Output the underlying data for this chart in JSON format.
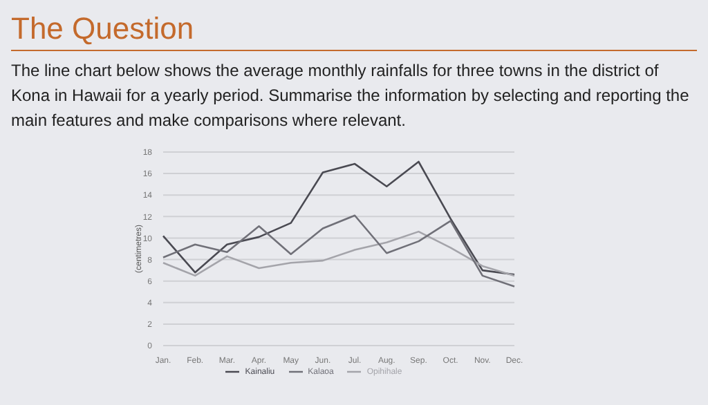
{
  "chart_data": {
    "type": "line",
    "title": "The Question",
    "subtitle": "The line chart below shows the average monthly rainfalls for three towns in the district of Kona in Hawaii for a yearly period. Summarise the information by selecting and reporting the main features and make comparisons where relevant.",
    "ylabel": "(centimetres)",
    "categories": [
      "Jan.",
      "Feb.",
      "Mar.",
      "Apr.",
      "May",
      "Jun.",
      "Jul.",
      "Aug.",
      "Sep.",
      "Oct.",
      "Nov.",
      "Dec."
    ],
    "series": [
      {
        "name": "Kainaliu",
        "color": "#4a4a52",
        "values": [
          10.2,
          6.8,
          9.4,
          10.1,
          11.4,
          16.1,
          16.9,
          14.8,
          17.1,
          11.8,
          7.0,
          6.6
        ]
      },
      {
        "name": "Opihihale",
        "color": "#a4a4aa",
        "values": [
          7.7,
          6.5,
          8.3,
          7.2,
          7.7,
          7.9,
          8.9,
          9.6,
          10.6,
          9.1,
          7.4,
          6.5
        ]
      },
      {
        "name": "Kalaoa",
        "color": "#707078",
        "values": [
          8.2,
          9.4,
          8.7,
          11.1,
          8.5,
          10.9,
          12.1,
          8.6,
          9.7,
          11.6,
          6.5,
          5.5
        ]
      }
    ],
    "ylim": [
      0,
      18
    ],
    "yticks": [
      0,
      2,
      4,
      6,
      8,
      10,
      12,
      14,
      16,
      18
    ],
    "grid": "y",
    "legend": "bottom",
    "marker": "none",
    "line_style": "solid"
  }
}
